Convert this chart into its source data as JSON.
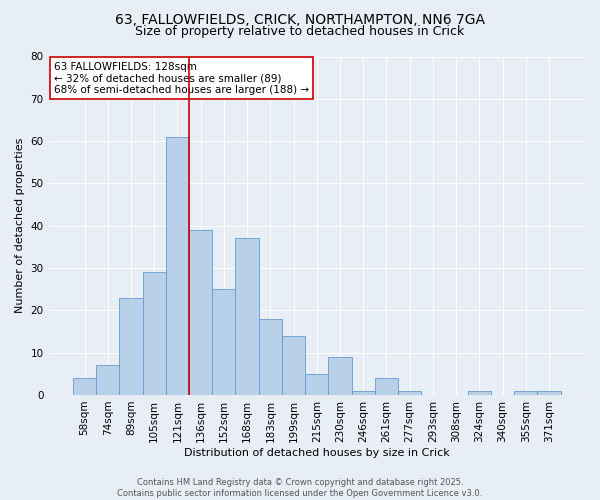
{
  "title_line1": "63, FALLOWFIELDS, CRICK, NORTHAMPTON, NN6 7GA",
  "title_line2": "Size of property relative to detached houses in Crick",
  "xlabel": "Distribution of detached houses by size in Crick",
  "ylabel": "Number of detached properties",
  "bar_values": [
    4,
    7,
    23,
    29,
    61,
    39,
    25,
    37,
    18,
    14,
    5,
    9,
    1,
    4,
    1,
    0,
    0,
    1,
    0,
    1,
    1
  ],
  "bar_labels": [
    "58sqm",
    "74sqm",
    "89sqm",
    "105sqm",
    "121sqm",
    "136sqm",
    "152sqm",
    "168sqm",
    "183sqm",
    "199sqm",
    "215sqm",
    "230sqm",
    "246sqm",
    "261sqm",
    "277sqm",
    "293sqm",
    "308sqm",
    "324sqm",
    "340sqm",
    "355sqm",
    "371sqm"
  ],
  "bar_color": "#b8d0e8",
  "bar_edge_color": "#6699cc",
  "vline_index": 4.5,
  "vline_color": "#cc0000",
  "annotation_text": "63 FALLOWFIELDS: 128sqm\n← 32% of detached houses are smaller (89)\n68% of semi-detached houses are larger (188) →",
  "annotation_box_color": "#ffffff",
  "annotation_box_edge": "#cc0000",
  "ylim": [
    0,
    80
  ],
  "yticks": [
    0,
    10,
    20,
    30,
    40,
    50,
    60,
    70,
    80
  ],
  "background_color": "#e8eef5",
  "grid_color": "#ffffff",
  "footer_text": "Contains HM Land Registry data © Crown copyright and database right 2025.\nContains public sector information licensed under the Open Government Licence v3.0.",
  "title_fontsize": 10,
  "subtitle_fontsize": 9,
  "axis_label_fontsize": 8,
  "tick_fontsize": 7.5,
  "annotation_fontsize": 7.5,
  "footer_fontsize": 6
}
